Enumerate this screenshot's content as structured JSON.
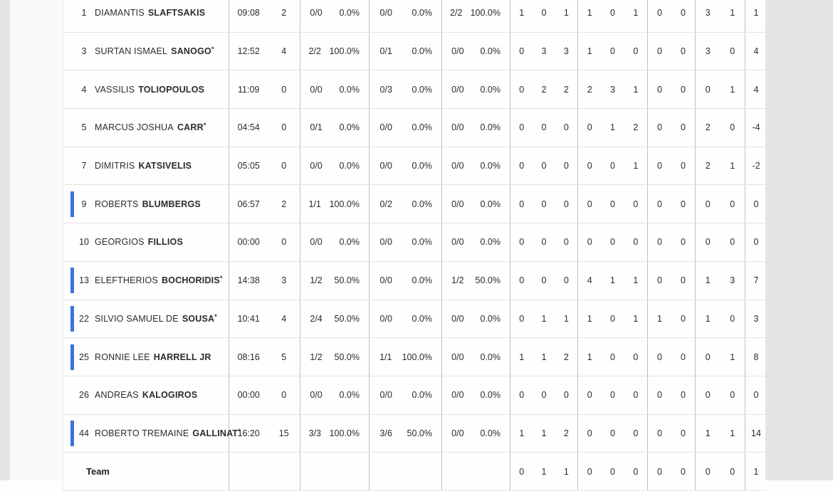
{
  "colors": {
    "on_court_accent": "#3b74db"
  },
  "table": {
    "team_row_label": "Team",
    "players": [
      {
        "number": "1",
        "first": "DIAMANTIS",
        "last": "SLAFTSAKIS",
        "star": "",
        "on_court": false,
        "min": "09:08",
        "pts": "2",
        "fg2": "0/0",
        "pct2": "0.0%",
        "fg3": "0/0",
        "pct3": "0.0%",
        "ft": "2/2",
        "pctft": "100.0%",
        "reb": [
          "1",
          "0",
          "1"
        ],
        "ast": [
          "1",
          "0",
          "1"
        ],
        "blk": [
          "0",
          "0"
        ],
        "fouls": [
          "3",
          "1"
        ],
        "pm": "1"
      },
      {
        "number": "3",
        "first": "SURTAN ISMAEL",
        "last": "SANOGO",
        "star": "*",
        "on_court": false,
        "min": "12:52",
        "pts": "4",
        "fg2": "2/2",
        "pct2": "100.0%",
        "fg3": "0/1",
        "pct3": "0.0%",
        "ft": "0/0",
        "pctft": "0.0%",
        "reb": [
          "0",
          "3",
          "3"
        ],
        "ast": [
          "1",
          "0",
          "0"
        ],
        "blk": [
          "0",
          "0"
        ],
        "fouls": [
          "3",
          "0"
        ],
        "pm": "4"
      },
      {
        "number": "4",
        "first": "VASSILIS",
        "last": "TOLIOPOULOS",
        "star": "",
        "on_court": false,
        "min": "11:09",
        "pts": "0",
        "fg2": "0/0",
        "pct2": "0.0%",
        "fg3": "0/3",
        "pct3": "0.0%",
        "ft": "0/0",
        "pctft": "0.0%",
        "reb": [
          "0",
          "2",
          "2"
        ],
        "ast": [
          "2",
          "3",
          "1"
        ],
        "blk": [
          "0",
          "0"
        ],
        "fouls": [
          "0",
          "1"
        ],
        "pm": "4"
      },
      {
        "number": "5",
        "first": "MARCUS JOSHUA",
        "last": "CARR",
        "star": "*",
        "on_court": false,
        "min": "04:54",
        "pts": "0",
        "fg2": "0/1",
        "pct2": "0.0%",
        "fg3": "0/0",
        "pct3": "0.0%",
        "ft": "0/0",
        "pctft": "0.0%",
        "reb": [
          "0",
          "0",
          "0"
        ],
        "ast": [
          "0",
          "1",
          "2"
        ],
        "blk": [
          "0",
          "0"
        ],
        "fouls": [
          "2",
          "0"
        ],
        "pm": "-4"
      },
      {
        "number": "7",
        "first": "DIMITRIS",
        "last": "KATSIVELIS",
        "star": "",
        "on_court": false,
        "min": "05:05",
        "pts": "0",
        "fg2": "0/0",
        "pct2": "0.0%",
        "fg3": "0/0",
        "pct3": "0.0%",
        "ft": "0/0",
        "pctft": "0.0%",
        "reb": [
          "0",
          "0",
          "0"
        ],
        "ast": [
          "0",
          "0",
          "1"
        ],
        "blk": [
          "0",
          "0"
        ],
        "fouls": [
          "2",
          "1"
        ],
        "pm": "-2"
      },
      {
        "number": "9",
        "first": "ROBERTS",
        "last": "BLUMBERGS",
        "star": "",
        "on_court": true,
        "min": "06:57",
        "pts": "2",
        "fg2": "1/1",
        "pct2": "100.0%",
        "fg3": "0/2",
        "pct3": "0.0%",
        "ft": "0/0",
        "pctft": "0.0%",
        "reb": [
          "0",
          "0",
          "0"
        ],
        "ast": [
          "0",
          "0",
          "0"
        ],
        "blk": [
          "0",
          "0"
        ],
        "fouls": [
          "0",
          "0"
        ],
        "pm": "0"
      },
      {
        "number": "10",
        "first": "GEORGIOS",
        "last": "FILLIOS",
        "star": "",
        "on_court": false,
        "min": "00:00",
        "pts": "0",
        "fg2": "0/0",
        "pct2": "0.0%",
        "fg3": "0/0",
        "pct3": "0.0%",
        "ft": "0/0",
        "pctft": "0.0%",
        "reb": [
          "0",
          "0",
          "0"
        ],
        "ast": [
          "0",
          "0",
          "0"
        ],
        "blk": [
          "0",
          "0"
        ],
        "fouls": [
          "0",
          "0"
        ],
        "pm": "0"
      },
      {
        "number": "13",
        "first": "ELEFTHERIOS",
        "last": "BOCHORIDIS",
        "star": "*",
        "on_court": true,
        "min": "14:38",
        "pts": "3",
        "fg2": "1/2",
        "pct2": "50.0%",
        "fg3": "0/0",
        "pct3": "0.0%",
        "ft": "1/2",
        "pctft": "50.0%",
        "reb": [
          "0",
          "0",
          "0"
        ],
        "ast": [
          "4",
          "1",
          "1"
        ],
        "blk": [
          "0",
          "0"
        ],
        "fouls": [
          "1",
          "3"
        ],
        "pm": "7"
      },
      {
        "number": "22",
        "first": "SILVIO SAMUEL DE",
        "last": "SOUSA",
        "star": "*",
        "on_court": true,
        "min": "10:41",
        "pts": "4",
        "fg2": "2/4",
        "pct2": "50.0%",
        "fg3": "0/0",
        "pct3": "0.0%",
        "ft": "0/0",
        "pctft": "0.0%",
        "reb": [
          "0",
          "1",
          "1"
        ],
        "ast": [
          "1",
          "0",
          "1"
        ],
        "blk": [
          "1",
          "0"
        ],
        "fouls": [
          "1",
          "0"
        ],
        "pm": "3"
      },
      {
        "number": "25",
        "first": "RONNIE LEE",
        "last": "HARRELL JR",
        "star": "",
        "on_court": true,
        "min": "08:16",
        "pts": "5",
        "fg2": "1/2",
        "pct2": "50.0%",
        "fg3": "1/1",
        "pct3": "100.0%",
        "ft": "0/0",
        "pctft": "0.0%",
        "reb": [
          "1",
          "1",
          "2"
        ],
        "ast": [
          "1",
          "0",
          "0"
        ],
        "blk": [
          "0",
          "0"
        ],
        "fouls": [
          "0",
          "1"
        ],
        "pm": "8"
      },
      {
        "number": "26",
        "first": "ANDREAS",
        "last": "KALOGIROS",
        "star": "",
        "on_court": false,
        "min": "00:00",
        "pts": "0",
        "fg2": "0/0",
        "pct2": "0.0%",
        "fg3": "0/0",
        "pct3": "0.0%",
        "ft": "0/0",
        "pctft": "0.0%",
        "reb": [
          "0",
          "0",
          "0"
        ],
        "ast": [
          "0",
          "0",
          "0"
        ],
        "blk": [
          "0",
          "0"
        ],
        "fouls": [
          "0",
          "0"
        ],
        "pm": "0"
      },
      {
        "number": "44",
        "first": "ROBERTO TREMAINE",
        "last": "GALLINAT",
        "star": "*",
        "on_court": true,
        "min": "16:20",
        "pts": "15",
        "fg2": "3/3",
        "pct2": "100.0%",
        "fg3": "3/6",
        "pct3": "50.0%",
        "ft": "0/0",
        "pctft": "0.0%",
        "reb": [
          "1",
          "1",
          "2"
        ],
        "ast": [
          "0",
          "0",
          "0"
        ],
        "blk": [
          "0",
          "0"
        ],
        "fouls": [
          "1",
          "1"
        ],
        "pm": "14"
      }
    ],
    "team": {
      "reb": [
        "0",
        "1",
        "1"
      ],
      "ast": [
        "0",
        "0",
        "0"
      ],
      "blk": [
        "0",
        "0"
      ],
      "fouls": [
        "0",
        "0"
      ],
      "pm": "1"
    }
  }
}
